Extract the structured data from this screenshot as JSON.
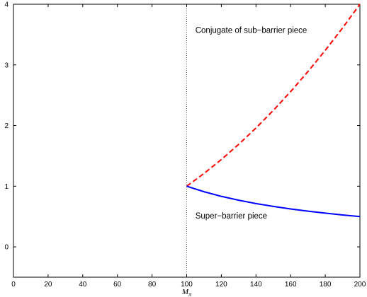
{
  "chart_data": {
    "type": "line",
    "xlabel": "M_π",
    "xlabel_main": "M",
    "xlabel_sub": "π",
    "xlim": [
      0,
      200
    ],
    "ylim": [
      -0.5,
      4
    ],
    "xticks": [
      0,
      20,
      40,
      60,
      80,
      100,
      120,
      140,
      160,
      180,
      200
    ],
    "yticks": [
      0,
      1,
      2,
      3,
      4
    ],
    "grid": false,
    "reference_line": {
      "x": 100,
      "style": "dotted",
      "color": "#555555"
    },
    "series": [
      {
        "style": "dashed",
        "color": "#ff0000",
        "x": [
          100,
          110,
          120,
          130,
          140,
          150,
          160,
          170,
          180,
          190,
          200
        ],
        "y": [
          1.0,
          1.21,
          1.44,
          1.69,
          1.96,
          2.25,
          2.56,
          2.89,
          3.24,
          3.61,
          4.0
        ]
      },
      {
        "style": "solid",
        "color": "#0000ff",
        "x": [
          100,
          110,
          120,
          130,
          140,
          150,
          160,
          170,
          180,
          190,
          200
        ],
        "y": [
          1.0,
          0.909,
          0.833,
          0.769,
          0.714,
          0.667,
          0.625,
          0.588,
          0.556,
          0.526,
          0.5
        ]
      }
    ],
    "annotations": [
      {
        "text": "Conjugate of sub−barrier piece",
        "x": 105,
        "y": 3.53
      },
      {
        "text": "Super−barrier piece",
        "x": 105,
        "y": 0.47
      }
    ]
  }
}
